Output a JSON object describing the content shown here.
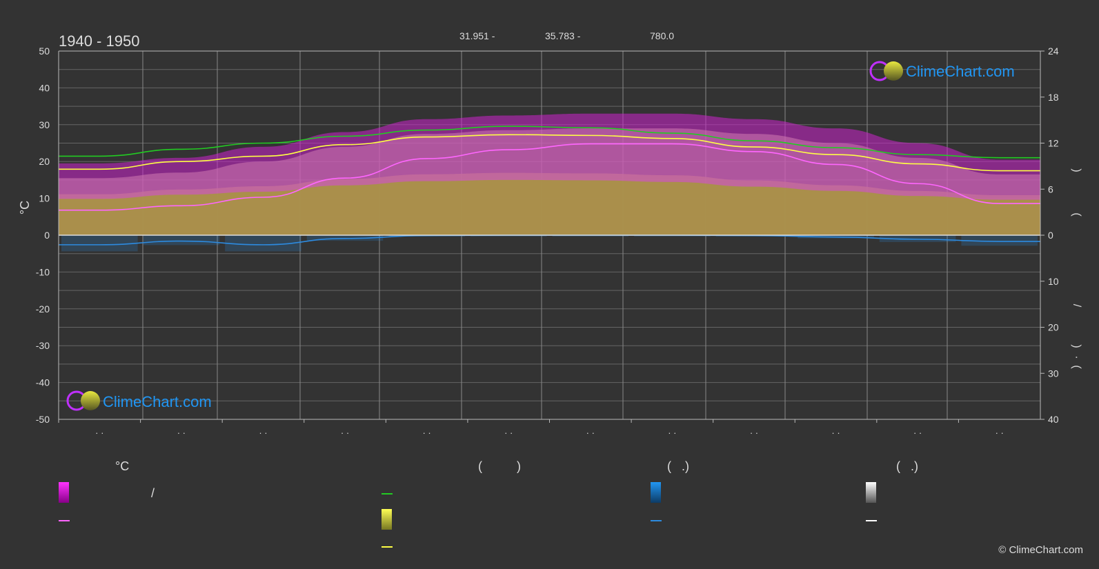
{
  "page": {
    "period": "1940 - 1950",
    "coords": {
      "lat": "31.951 -",
      "lon": "35.783 -",
      "elev": "780.0"
    },
    "left_axis_unit": "°C",
    "right_axis_top_label": ")",
    "right_axis_mid_label": "(",
    "right_axis_bottom_label": "/",
    "right_axis_paren_open": "(",
    "right_axis_paren_close": ")",
    "right_axis_dot": "·",
    "month_labels": [
      "· ·",
      "· ·",
      "· ·",
      "· ·",
      "· ·",
      "· ·",
      "· ·",
      "· ·",
      "· ·",
      "· ·",
      "· ·",
      "· ·"
    ],
    "copyright": "© ClimeChart.com",
    "logo_text": "ClimeChart.com"
  },
  "legend": {
    "headers": [
      "°C",
      "(          )",
      "(   .)",
      "(   .)"
    ],
    "slash": "/"
  },
  "colors": {
    "daylight": "#22cc22",
    "sunshine_line": "#ffff44",
    "sunshine_fill": "#a0a02a",
    "max_temp_band": "#cc22cc",
    "mean_temp_line": "#ff66ff",
    "temp_fill": "#d07ab0",
    "precip": "#2d8be0",
    "snow": "#ffffff",
    "grid": "#666666"
  },
  "chart_data": {
    "type": "area",
    "x_type": "month-of-year",
    "ylim_left": [
      -50,
      50
    ],
    "left_ticks": [
      50,
      40,
      30,
      20,
      10,
      0,
      -10,
      -20,
      -30,
      -40,
      -50
    ],
    "right_ticks_top": [
      24,
      18,
      12,
      6,
      0
    ],
    "right_ticks_bottom": [
      0,
      10,
      20,
      30,
      40
    ],
    "grid": true,
    "months": [
      1,
      2,
      3,
      4,
      5,
      6,
      7,
      8,
      9,
      10,
      11,
      12
    ],
    "series": [
      {
        "key": "daylight",
        "values": [
          10.3,
          11.2,
          12.0,
          12.9,
          13.7,
          14.2,
          14.0,
          13.3,
          12.3,
          11.4,
          10.5,
          10.1
        ]
      },
      {
        "key": "sunshine_line",
        "values": [
          8.6,
          9.6,
          10.3,
          11.8,
          12.8,
          13.1,
          13.0,
          12.6,
          11.5,
          10.5,
          9.3,
          8.4
        ]
      },
      {
        "key": "max_temp_band",
        "values": [
          19.5,
          21.0,
          24.0,
          28.0,
          31.5,
          32.5,
          33.0,
          33.0,
          31.5,
          29.0,
          25.0,
          20.5
        ]
      },
      {
        "key": "mean_temp_line",
        "values": [
          6.8,
          8.0,
          10.3,
          15.5,
          20.8,
          23.2,
          24.8,
          24.8,
          22.7,
          19.2,
          14.0,
          8.6
        ]
      },
      {
        "key": "precip_mean_line",
        "values": [
          -2.6,
          -1.6,
          -2.6,
          -0.9,
          -0.1,
          0.0,
          0.0,
          0.0,
          -0.1,
          -0.5,
          -1.1,
          -1.7
        ]
      }
    ]
  }
}
